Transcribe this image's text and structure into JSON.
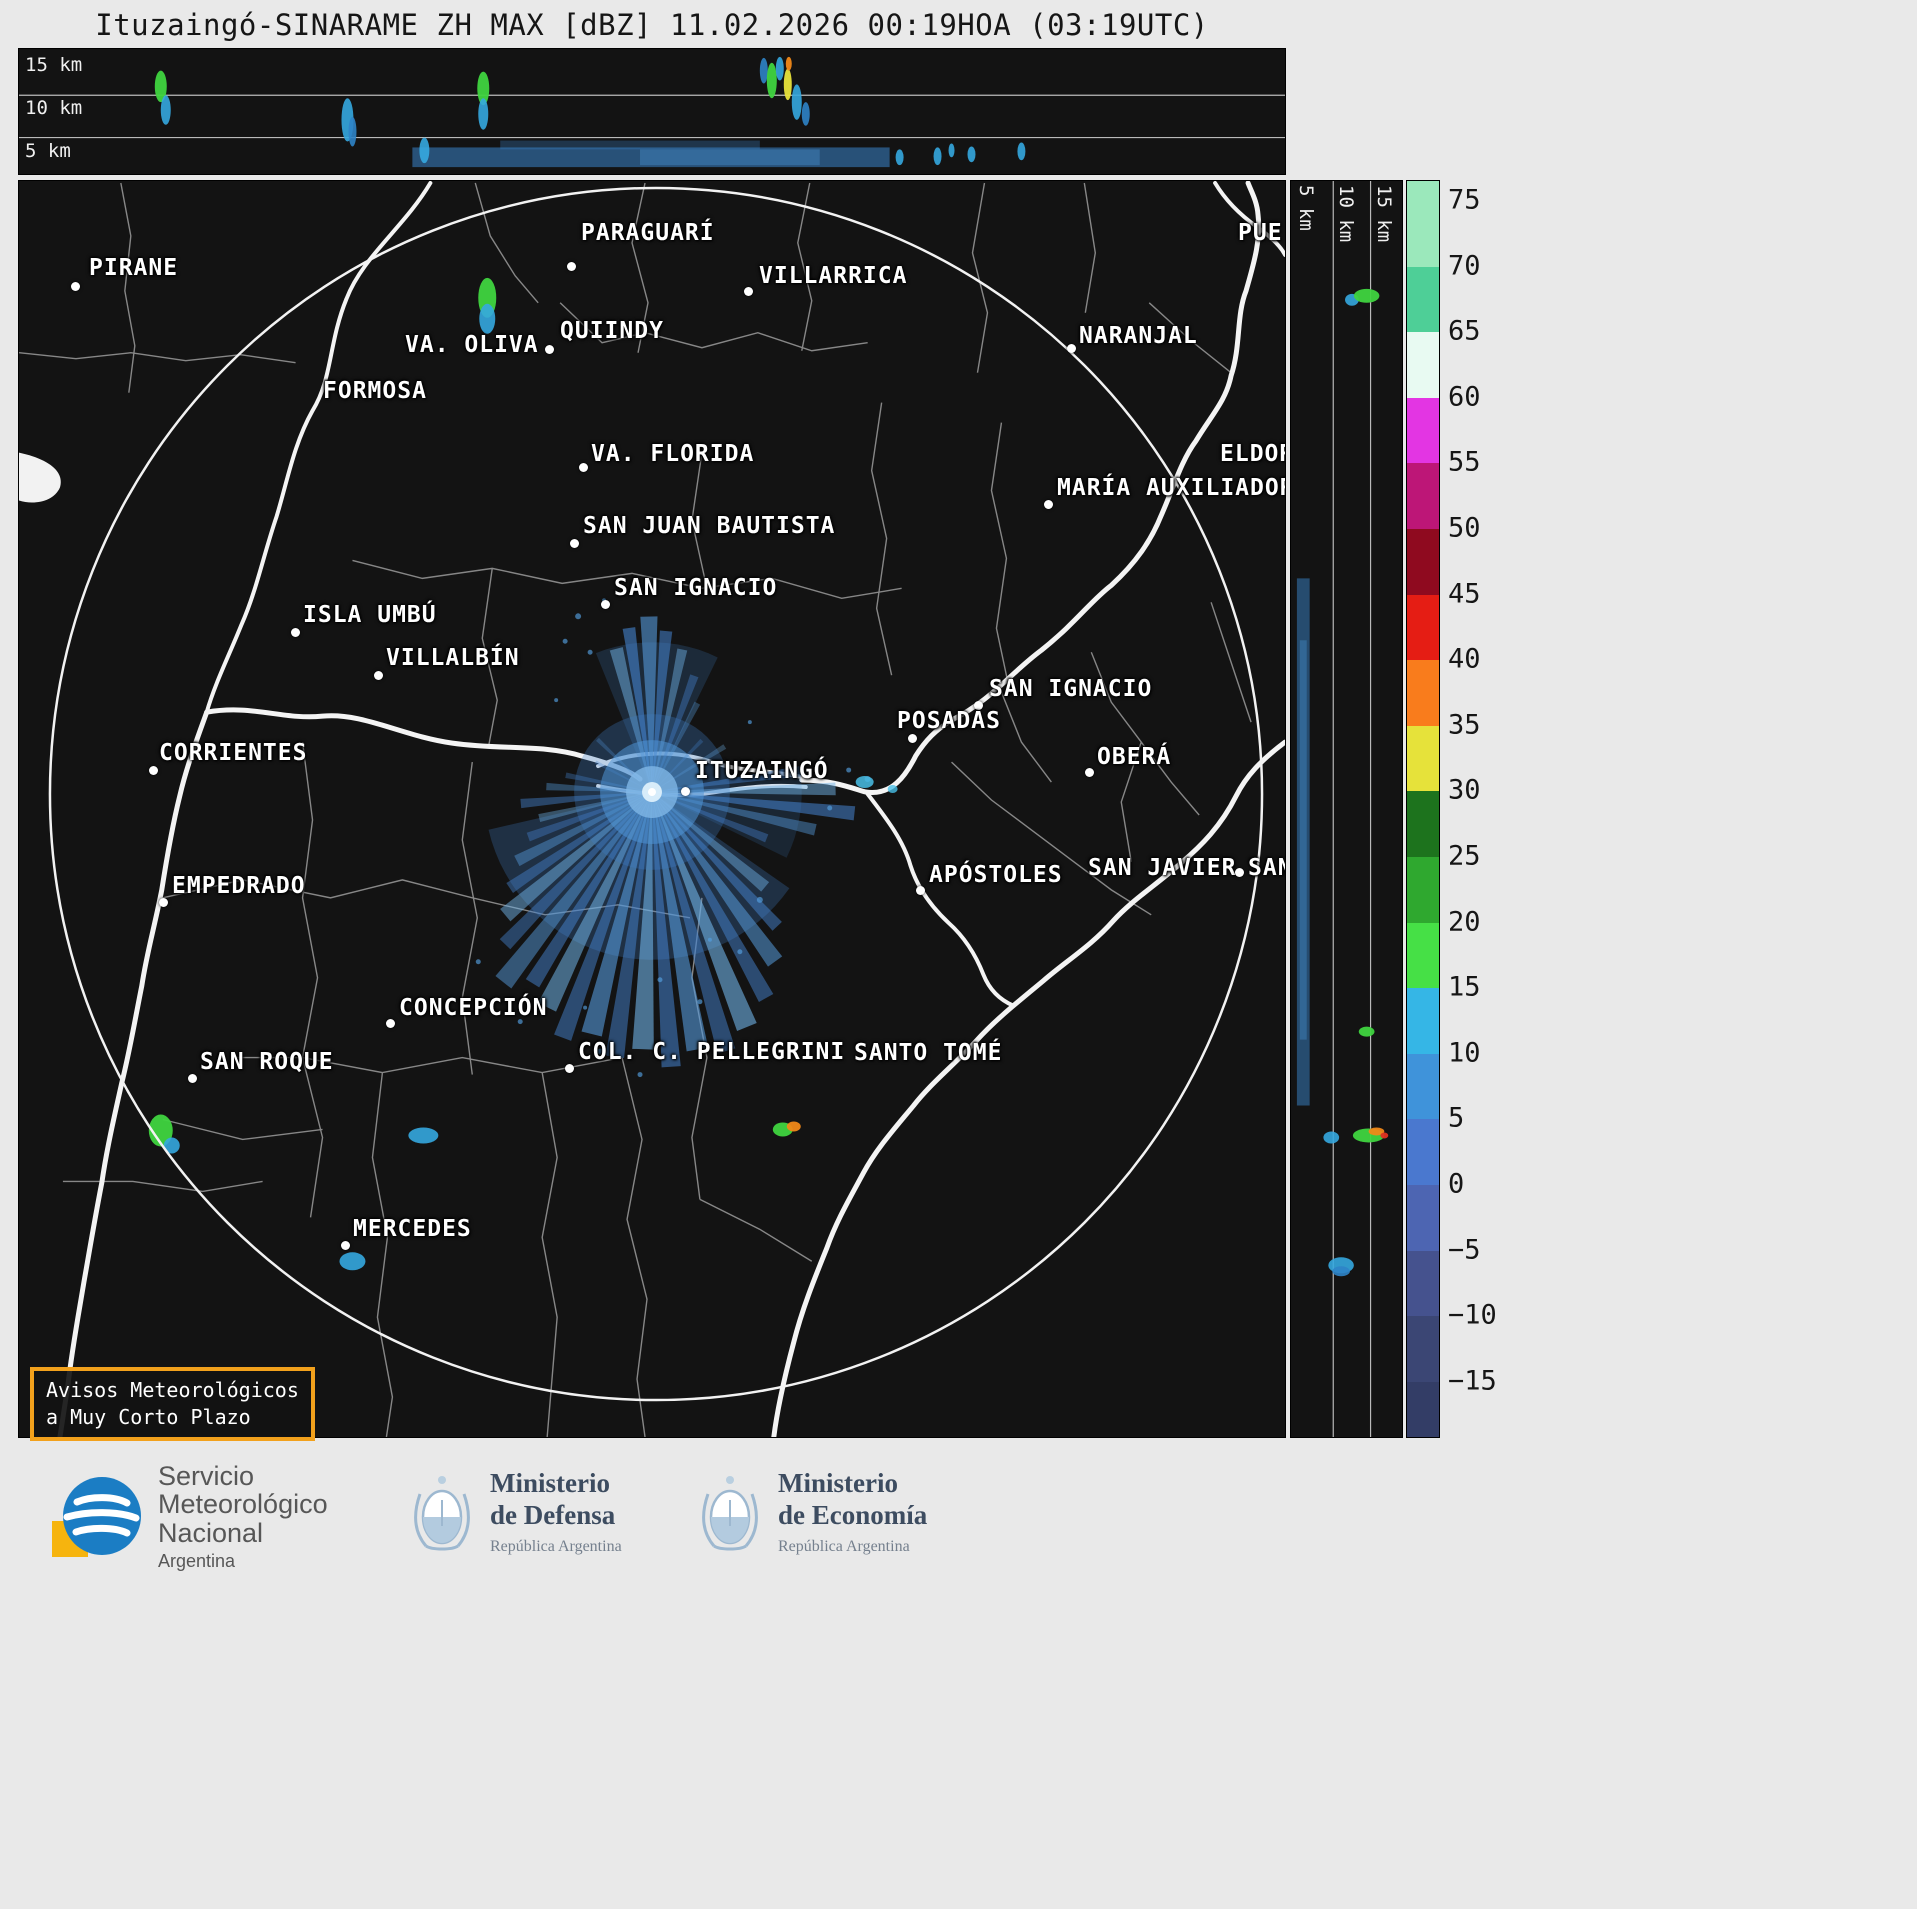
{
  "title": "Ituzaingó-SINARAME ZH MAX [dBZ] 11.02.2026 00:19HOA (03:19UTC)",
  "top_panel": {
    "labels": [
      "15 km",
      "10 km",
      "5 km"
    ]
  },
  "side_panel": {
    "labels": [
      "5 km",
      "10 km",
      "15 km"
    ]
  },
  "colorbar": {
    "unit": "dBZ",
    "ticks": [
      "75",
      "70",
      "65",
      "60",
      "55",
      "50",
      "45",
      "40",
      "35",
      "30",
      "25",
      "20",
      "15",
      "10",
      "5",
      "0",
      "−5",
      "−10",
      "−15"
    ],
    "segments": [
      "#9be8bb",
      "#4ecf97",
      "#e8faf2",
      "#e335e3",
      "#bd1677",
      "#8f0a1f",
      "#e51d14",
      "#f97c1c",
      "#e6e23a",
      "#1d731d",
      "#2fa82f",
      "#46e046",
      "#35b6e6",
      "#3f93da",
      "#4a78cf",
      "#4d65b2",
      "#45528e",
      "#3b4674"
    ],
    "bottom_color": "#333d66"
  },
  "map": {
    "advisory": {
      "line1": "Avisos Meteorológicos",
      "line2": "a Muy Corto Plazo"
    },
    "accent_border_color": "#f2a11c",
    "echo_main_color": "#4583cf",
    "cities": [
      {
        "name": "PIRANE",
        "label": [
          88,
          254
        ],
        "dot": [
          74,
          285
        ]
      },
      {
        "name": "PARAGUARÍ",
        "label": [
          580,
          219
        ],
        "dot": [
          570,
          265
        ]
      },
      {
        "name": "VILLARRICA",
        "label": [
          758,
          262
        ],
        "dot": [
          747,
          290
        ]
      },
      {
        "name": "VA. OLIVA",
        "label": [
          404,
          331
        ],
        "dot": [
          548,
          348
        ]
      },
      {
        "name": "QUIINDY",
        "label": [
          559,
          317
        ],
        "dot": null
      },
      {
        "name": "FORMOSA",
        "label": [
          322,
          377
        ],
        "dot": null
      },
      {
        "name": "NARANJAL",
        "label": [
          1078,
          322
        ],
        "dot": [
          1070,
          347
        ]
      },
      {
        "name": "VA. FLORIDA",
        "label": [
          590,
          440
        ],
        "dot": [
          582,
          466
        ]
      },
      {
        "name": "ELDOR",
        "label": [
          1219,
          440
        ],
        "dot": null
      },
      {
        "name": "MARÍA AUXILIADORA",
        "label": [
          1056,
          474
        ],
        "dot": [
          1047,
          503
        ]
      },
      {
        "name": "SAN JUAN BAUTISTA",
        "label": [
          582,
          512
        ],
        "dot": [
          573,
          542
        ]
      },
      {
        "name": "SAN IGNACIO",
        "label": [
          613,
          574
        ],
        "dot": [
          604,
          603
        ]
      },
      {
        "name": "ISLA UMBÚ",
        "label": [
          302,
          601
        ],
        "dot": [
          294,
          631
        ]
      },
      {
        "name": "VILLALBÍN",
        "label": [
          385,
          644
        ],
        "dot": [
          377,
          674
        ]
      },
      {
        "name": "SAN IGNACIO",
        "label": [
          988,
          675
        ],
        "dot": [
          977,
          704
        ]
      },
      {
        "name": "POSADAS",
        "label": [
          896,
          707
        ],
        "dot": [
          911,
          737
        ]
      },
      {
        "name": "CORRIENTES",
        "label": [
          158,
          739
        ],
        "dot": [
          152,
          769
        ]
      },
      {
        "name": "ITUZAINGÓ",
        "label": [
          694,
          757
        ],
        "dot": [
          684,
          790
        ]
      },
      {
        "name": "OBERÁ",
        "label": [
          1096,
          743
        ],
        "dot": [
          1088,
          771
        ]
      },
      {
        "name": "EMPEDRADO",
        "label": [
          171,
          872
        ],
        "dot": [
          162,
          901
        ]
      },
      {
        "name": "APÓSTOLES",
        "label": [
          928,
          861
        ],
        "dot": [
          919,
          889
        ]
      },
      {
        "name": "SAN JAVIER",
        "label": [
          1087,
          854
        ],
        "dot": null
      },
      {
        "name": "SAN",
        "label": [
          1247,
          854
        ],
        "dot": [
          1238,
          871
        ]
      },
      {
        "name": "CONCEPCIÓN",
        "label": [
          398,
          994
        ],
        "dot": [
          389,
          1022
        ]
      },
      {
        "name": "COL. C. PELLEGRINI",
        "label": [
          577,
          1038
        ],
        "dot": [
          568,
          1067
        ]
      },
      {
        "name": "SANTO TOMÉ",
        "label": [
          853,
          1039
        ],
        "dot": null
      },
      {
        "name": "SAN ROQUE",
        "label": [
          199,
          1048
        ],
        "dot": [
          191,
          1077
        ]
      },
      {
        "name": "MERCEDES",
        "label": [
          352,
          1215
        ],
        "dot": [
          344,
          1244
        ]
      },
      {
        "name": "PUE",
        "label": [
          1237,
          219
        ],
        "dot": null
      }
    ]
  },
  "footer": {
    "smn": {
      "lines": [
        "Servicio",
        "Meteorológico",
        "Nacional"
      ],
      "country": "Argentina"
    },
    "defensa": {
      "title1": "Ministerio",
      "title2": "de Defensa",
      "sub": "República Argentina"
    },
    "economia": {
      "title1": "Ministerio",
      "title2": "de Economía",
      "sub": "República Argentina"
    }
  }
}
